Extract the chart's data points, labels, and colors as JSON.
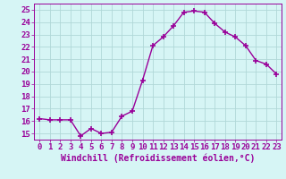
{
  "x": [
    0,
    1,
    2,
    3,
    4,
    5,
    6,
    7,
    8,
    9,
    10,
    11,
    12,
    13,
    14,
    15,
    16,
    17,
    18,
    19,
    20,
    21,
    22,
    23
  ],
  "y": [
    16.2,
    16.1,
    16.1,
    16.1,
    14.8,
    15.4,
    15.0,
    15.1,
    16.4,
    16.8,
    19.3,
    22.1,
    22.8,
    23.7,
    24.8,
    24.9,
    24.8,
    23.9,
    23.2,
    22.8,
    22.1,
    20.9,
    20.6,
    19.8
  ],
  "line_color": "#990099",
  "marker": "+",
  "marker_size": 4,
  "line_width": 1.0,
  "bg_color": "#d6f5f5",
  "grid_color": "#b0d8d8",
  "xlabel": "Windchill (Refroidissement éolien,°C)",
  "xlabel_fontsize": 7,
  "tick_fontsize": 6.5,
  "ylim": [
    14.5,
    25.5
  ],
  "xlim": [
    -0.5,
    23.5
  ],
  "yticks": [
    15,
    16,
    17,
    18,
    19,
    20,
    21,
    22,
    23,
    24,
    25
  ],
  "xticks": [
    0,
    1,
    2,
    3,
    4,
    5,
    6,
    7,
    8,
    9,
    10,
    11,
    12,
    13,
    14,
    15,
    16,
    17,
    18,
    19,
    20,
    21,
    22,
    23
  ]
}
